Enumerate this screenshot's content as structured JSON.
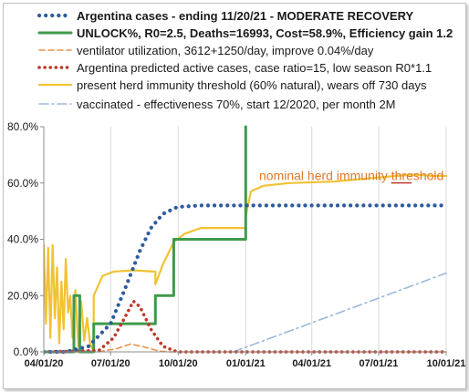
{
  "chart_data": {
    "type": "line",
    "title": "",
    "xlabel": "",
    "ylabel": "",
    "ylim": [
      0,
      80
    ],
    "y_ticks": [
      "0.0%",
      "20.0%",
      "40.0%",
      "60.0%",
      "80.0%"
    ],
    "x_range": [
      "2020-04-01",
      "2021-10-01"
    ],
    "x_ticks": [
      {
        "label": "04/01/20",
        "date": "2020-04-01"
      },
      {
        "label": "07/01/20",
        "date": "2020-07-01"
      },
      {
        "label": "10/01/20",
        "date": "2020-10-01"
      },
      {
        "label": "01/01/21",
        "date": "2021-01-01"
      },
      {
        "label": "04/01/21",
        "date": "2021-04-01"
      },
      {
        "label": "07/01/21",
        "date": "2021-07-01"
      },
      {
        "label": "10/01/21",
        "date": "2021-10-01"
      }
    ],
    "grid": "vertical",
    "legend_position": "top",
    "annotation": {
      "text": "nominal herd immunity threshold",
      "date": "2021-05-25",
      "y": 61
    },
    "series": [
      {
        "name": "Argentina cases - ending 11/20/21 - MODERATE RECOVERY",
        "color": "#2e5c9e",
        "style": "dotted",
        "bold": true,
        "points": [
          [
            "2020-04-01",
            0
          ],
          [
            "2020-05-01",
            0
          ],
          [
            "2020-06-01",
            2
          ],
          [
            "2020-07-01",
            10
          ],
          [
            "2020-07-20",
            22
          ],
          [
            "2020-08-10",
            36
          ],
          [
            "2020-08-25",
            44
          ],
          [
            "2020-09-10",
            49
          ],
          [
            "2020-09-30",
            51.5
          ],
          [
            "2020-11-01",
            52
          ],
          [
            "2021-10-01",
            52
          ]
        ]
      },
      {
        "name": "UNLOCK%, R0=2.5,  Deaths=16993, Cost=58.9%, Efficiency gain 1.2",
        "color": "#3f9a4b",
        "style": "solid",
        "bold": true,
        "points": [
          [
            "2020-04-01",
            0
          ],
          [
            "2020-05-12",
            0
          ],
          [
            "2020-05-12",
            20
          ],
          [
            "2020-05-20",
            20
          ],
          [
            "2020-05-20",
            0
          ],
          [
            "2020-06-08",
            0
          ],
          [
            "2020-06-08",
            10
          ],
          [
            "2020-08-31",
            10
          ],
          [
            "2020-08-31",
            20
          ],
          [
            "2020-09-25",
            20
          ],
          [
            "2020-09-25",
            40
          ],
          [
            "2021-01-01",
            40
          ],
          [
            "2021-01-01",
            80
          ]
        ]
      },
      {
        "name": "ventilator utilization, 3612+1250/day, improve 0.04%/day",
        "color": "#e8924a",
        "style": "dashed",
        "bold": false,
        "points": [
          [
            "2020-04-01",
            0
          ],
          [
            "2020-06-15",
            0
          ],
          [
            "2020-07-10",
            1.2
          ],
          [
            "2020-07-28",
            2.8
          ],
          [
            "2020-08-15",
            1.8
          ],
          [
            "2020-09-05",
            0.3
          ],
          [
            "2020-09-20",
            0
          ],
          [
            "2021-10-01",
            0
          ]
        ]
      },
      {
        "name": "Argentina predicted active cases, case ratio=15, low season R0*1.1",
        "color": "#c0392b",
        "style": "dotted",
        "bold": false,
        "points": [
          [
            "2020-04-01",
            0
          ],
          [
            "2020-06-15",
            0.5
          ],
          [
            "2020-07-05",
            5
          ],
          [
            "2020-07-20",
            12
          ],
          [
            "2020-08-01",
            18
          ],
          [
            "2020-08-10",
            16
          ],
          [
            "2020-08-25",
            8
          ],
          [
            "2020-09-10",
            2
          ],
          [
            "2020-09-30",
            0
          ],
          [
            "2021-01-01",
            0
          ],
          [
            "2021-10-01",
            0
          ]
        ]
      },
      {
        "name": "present herd immunity threshold (60% natural), wears off 730 days",
        "color": "#f2c232",
        "style": "solid",
        "bold": false,
        "points": [
          [
            "2020-04-01",
            38
          ],
          [
            "2020-04-04",
            10
          ],
          [
            "2020-04-07",
            37
          ],
          [
            "2020-04-10",
            5
          ],
          [
            "2020-04-13",
            38
          ],
          [
            "2020-04-16",
            12
          ],
          [
            "2020-04-19",
            30
          ],
          [
            "2020-04-22",
            3
          ],
          [
            "2020-04-25",
            25
          ],
          [
            "2020-04-28",
            8
          ],
          [
            "2020-05-01",
            33
          ],
          [
            "2020-05-04",
            14
          ],
          [
            "2020-05-07",
            20
          ],
          [
            "2020-05-10",
            5
          ],
          [
            "2020-05-14",
            22
          ],
          [
            "2020-05-18",
            2
          ],
          [
            "2020-05-22",
            18
          ],
          [
            "2020-05-26",
            4
          ],
          [
            "2020-05-30",
            12
          ],
          [
            "2020-06-03",
            3
          ],
          [
            "2020-06-08",
            0
          ],
          [
            "2020-06-08",
            20
          ],
          [
            "2020-06-20",
            27
          ],
          [
            "2020-07-05",
            28.5
          ],
          [
            "2020-08-01",
            29
          ],
          [
            "2020-08-31",
            28.5
          ],
          [
            "2020-08-31",
            24
          ],
          [
            "2020-09-10",
            31
          ],
          [
            "2020-09-25",
            39
          ],
          [
            "2020-10-10",
            42
          ],
          [
            "2020-11-01",
            44
          ],
          [
            "2020-12-01",
            44
          ],
          [
            "2020-12-31",
            44
          ],
          [
            "2021-01-01",
            44
          ],
          [
            "2021-01-01",
            48
          ],
          [
            "2021-01-08",
            57
          ],
          [
            "2021-01-25",
            59
          ],
          [
            "2021-03-01",
            60
          ],
          [
            "2021-05-01",
            60.5
          ],
          [
            "2021-07-01",
            62
          ],
          [
            "2021-08-15",
            63
          ],
          [
            "2021-09-15",
            62.5
          ],
          [
            "2021-10-01",
            62.5
          ]
        ]
      },
      {
        "name": "vaccinated - effectiveness 70%, start 12/2020, per month 2M",
        "color": "#9db8d9",
        "style": "dashdot",
        "bold": false,
        "points": [
          [
            "2020-12-15",
            0
          ],
          [
            "2021-10-01",
            28
          ]
        ]
      }
    ]
  }
}
